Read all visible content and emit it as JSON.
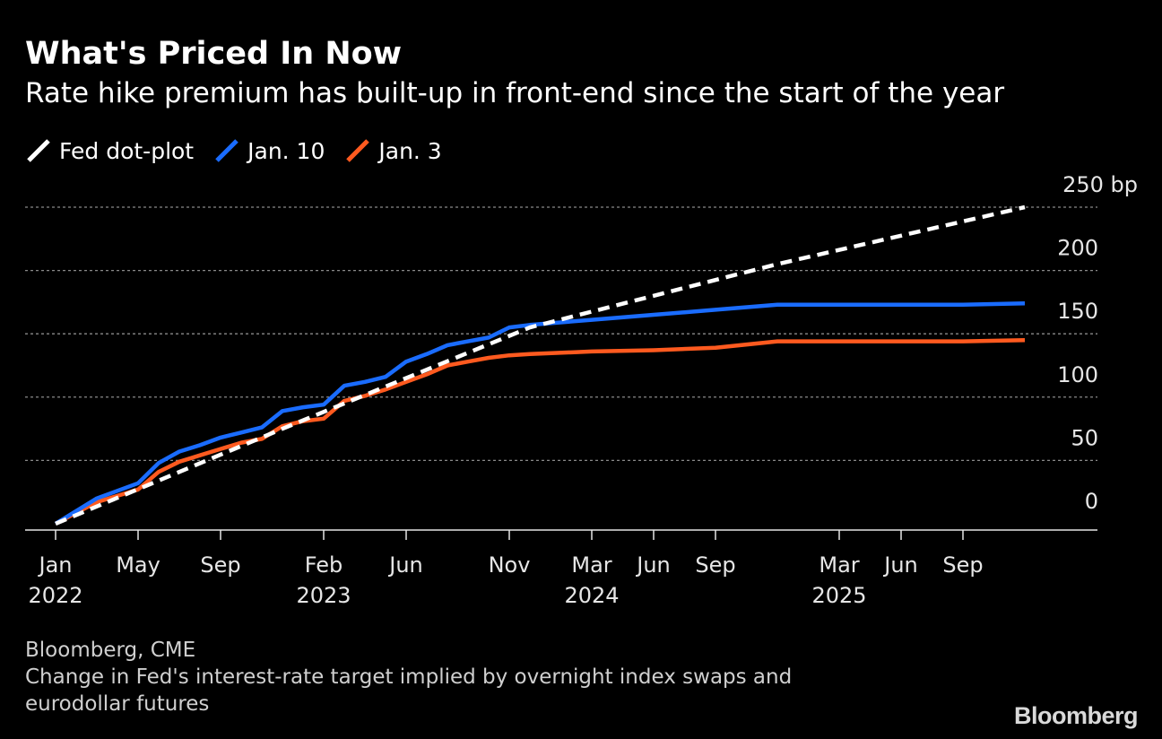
{
  "chart_data": {
    "type": "line",
    "title": "What's Priced In Now",
    "subtitle": "Rate hike premium has built-up in front-end since the start of the year",
    "x_tick_labels": [
      {
        "month": "Jan",
        "year": "2022",
        "x": "2022-01"
      },
      {
        "month": "May",
        "year": "",
        "x": "2022-05"
      },
      {
        "month": "Sep",
        "year": "",
        "x": "2022-09"
      },
      {
        "month": "Feb",
        "year": "2023",
        "x": "2023-02"
      },
      {
        "month": "Jun",
        "year": "",
        "x": "2023-06"
      },
      {
        "month": "Nov",
        "year": "",
        "x": "2023-11"
      },
      {
        "month": "Mar",
        "year": "2024",
        "x": "2024-03"
      },
      {
        "month": "Jun",
        "year": "",
        "x": "2024-06"
      },
      {
        "month": "Sep",
        "year": "",
        "x": "2024-09"
      },
      {
        "month": "Mar",
        "year": "2025",
        "x": "2025-03"
      },
      {
        "month": "Jun",
        "year": "",
        "x": "2025-06"
      },
      {
        "month": "Sep",
        "year": "",
        "x": "2025-09"
      }
    ],
    "y_ticks": [
      0,
      50,
      100,
      150,
      200,
      250
    ],
    "y_tick_labels": [
      "0",
      "50",
      "100",
      "150",
      "200",
      "250 bp"
    ],
    "ylim": [
      -5,
      250
    ],
    "xlim": [
      "2022-01",
      "2025-12"
    ],
    "grid": "horizontal dotted",
    "legend_position": "top-left",
    "series": [
      {
        "name": "Fed dot-plot",
        "color": "#ffffff",
        "dashed": true,
        "points": [
          [
            "2022-01",
            0
          ],
          [
            "2022-12",
            75
          ],
          [
            "2023-12",
            155
          ],
          [
            "2024-12",
            205
          ],
          [
            "2025-12",
            250
          ]
        ]
      },
      {
        "name": "Jan. 10",
        "color": "#1a6cff",
        "dashed": false,
        "points": [
          [
            "2022-01",
            0
          ],
          [
            "2022-03",
            20
          ],
          [
            "2022-05",
            32
          ],
          [
            "2022-06",
            48
          ],
          [
            "2022-07",
            57
          ],
          [
            "2022-08",
            62
          ],
          [
            "2022-09",
            68
          ],
          [
            "2022-10",
            72
          ],
          [
            "2022-11",
            76
          ],
          [
            "2022-12",
            89
          ],
          [
            "2023-01",
            92
          ],
          [
            "2023-02",
            94
          ],
          [
            "2023-03",
            109
          ],
          [
            "2023-04",
            112
          ],
          [
            "2023-05",
            116
          ],
          [
            "2023-06",
            128
          ],
          [
            "2023-07",
            134
          ],
          [
            "2023-08",
            141
          ],
          [
            "2023-09",
            144
          ],
          [
            "2023-10",
            147
          ],
          [
            "2023-11",
            155
          ],
          [
            "2023-12",
            157
          ],
          [
            "2024-03",
            161
          ],
          [
            "2024-06",
            165
          ],
          [
            "2024-09",
            169
          ],
          [
            "2024-12",
            173
          ],
          [
            "2025-03",
            173
          ],
          [
            "2025-06",
            173
          ],
          [
            "2025-09",
            173
          ],
          [
            "2025-12",
            174
          ]
        ]
      },
      {
        "name": "Jan. 3",
        "color": "#ff5a1f",
        "dashed": false,
        "points": [
          [
            "2022-01",
            0
          ],
          [
            "2022-03",
            17
          ],
          [
            "2022-05",
            27
          ],
          [
            "2022-06",
            41
          ],
          [
            "2022-07",
            49
          ],
          [
            "2022-08",
            54
          ],
          [
            "2022-09",
            59
          ],
          [
            "2022-10",
            64
          ],
          [
            "2022-11",
            67
          ],
          [
            "2022-12",
            77
          ],
          [
            "2023-01",
            81
          ],
          [
            "2023-02",
            83
          ],
          [
            "2023-03",
            97
          ],
          [
            "2023-04",
            101
          ],
          [
            "2023-05",
            106
          ],
          [
            "2023-06",
            112
          ],
          [
            "2023-07",
            118
          ],
          [
            "2023-08",
            125
          ],
          [
            "2023-09",
            128
          ],
          [
            "2023-10",
            131
          ],
          [
            "2023-11",
            133
          ],
          [
            "2023-12",
            134
          ],
          [
            "2024-03",
            136
          ],
          [
            "2024-06",
            137
          ],
          [
            "2024-09",
            139
          ],
          [
            "2024-12",
            144
          ],
          [
            "2025-03",
            144
          ],
          [
            "2025-06",
            144
          ],
          [
            "2025-09",
            144
          ],
          [
            "2025-12",
            145
          ]
        ]
      }
    ]
  },
  "footer": {
    "source": "Bloomberg, CME",
    "note": "Change in Fed's interest-rate target implied by overnight index swaps and eurodollar futures"
  },
  "brand": "Bloomberg"
}
